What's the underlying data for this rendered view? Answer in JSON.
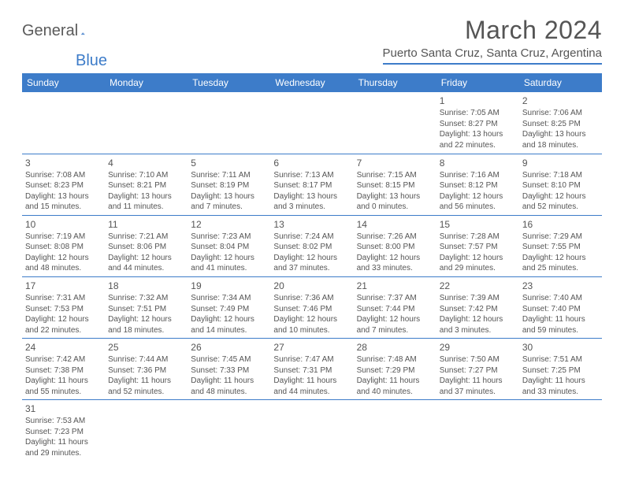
{
  "logo": {
    "text1": "General",
    "text2": "Blue"
  },
  "title": "March 2024",
  "location": "Puerto Santa Cruz, Santa Cruz, Argentina",
  "colors": {
    "accent": "#3d7cc9",
    "text": "#555555",
    "bg": "#ffffff"
  },
  "weekdays": [
    "Sunday",
    "Monday",
    "Tuesday",
    "Wednesday",
    "Thursday",
    "Friday",
    "Saturday"
  ],
  "weeks": [
    [
      null,
      null,
      null,
      null,
      null,
      {
        "n": "1",
        "sunrise": "Sunrise: 7:05 AM",
        "sunset": "Sunset: 8:27 PM",
        "daylight": "Daylight: 13 hours and 22 minutes."
      },
      {
        "n": "2",
        "sunrise": "Sunrise: 7:06 AM",
        "sunset": "Sunset: 8:25 PM",
        "daylight": "Daylight: 13 hours and 18 minutes."
      }
    ],
    [
      {
        "n": "3",
        "sunrise": "Sunrise: 7:08 AM",
        "sunset": "Sunset: 8:23 PM",
        "daylight": "Daylight: 13 hours and 15 minutes."
      },
      {
        "n": "4",
        "sunrise": "Sunrise: 7:10 AM",
        "sunset": "Sunset: 8:21 PM",
        "daylight": "Daylight: 13 hours and 11 minutes."
      },
      {
        "n": "5",
        "sunrise": "Sunrise: 7:11 AM",
        "sunset": "Sunset: 8:19 PM",
        "daylight": "Daylight: 13 hours and 7 minutes."
      },
      {
        "n": "6",
        "sunrise": "Sunrise: 7:13 AM",
        "sunset": "Sunset: 8:17 PM",
        "daylight": "Daylight: 13 hours and 3 minutes."
      },
      {
        "n": "7",
        "sunrise": "Sunrise: 7:15 AM",
        "sunset": "Sunset: 8:15 PM",
        "daylight": "Daylight: 13 hours and 0 minutes."
      },
      {
        "n": "8",
        "sunrise": "Sunrise: 7:16 AM",
        "sunset": "Sunset: 8:12 PM",
        "daylight": "Daylight: 12 hours and 56 minutes."
      },
      {
        "n": "9",
        "sunrise": "Sunrise: 7:18 AM",
        "sunset": "Sunset: 8:10 PM",
        "daylight": "Daylight: 12 hours and 52 minutes."
      }
    ],
    [
      {
        "n": "10",
        "sunrise": "Sunrise: 7:19 AM",
        "sunset": "Sunset: 8:08 PM",
        "daylight": "Daylight: 12 hours and 48 minutes."
      },
      {
        "n": "11",
        "sunrise": "Sunrise: 7:21 AM",
        "sunset": "Sunset: 8:06 PM",
        "daylight": "Daylight: 12 hours and 44 minutes."
      },
      {
        "n": "12",
        "sunrise": "Sunrise: 7:23 AM",
        "sunset": "Sunset: 8:04 PM",
        "daylight": "Daylight: 12 hours and 41 minutes."
      },
      {
        "n": "13",
        "sunrise": "Sunrise: 7:24 AM",
        "sunset": "Sunset: 8:02 PM",
        "daylight": "Daylight: 12 hours and 37 minutes."
      },
      {
        "n": "14",
        "sunrise": "Sunrise: 7:26 AM",
        "sunset": "Sunset: 8:00 PM",
        "daylight": "Daylight: 12 hours and 33 minutes."
      },
      {
        "n": "15",
        "sunrise": "Sunrise: 7:28 AM",
        "sunset": "Sunset: 7:57 PM",
        "daylight": "Daylight: 12 hours and 29 minutes."
      },
      {
        "n": "16",
        "sunrise": "Sunrise: 7:29 AM",
        "sunset": "Sunset: 7:55 PM",
        "daylight": "Daylight: 12 hours and 25 minutes."
      }
    ],
    [
      {
        "n": "17",
        "sunrise": "Sunrise: 7:31 AM",
        "sunset": "Sunset: 7:53 PM",
        "daylight": "Daylight: 12 hours and 22 minutes."
      },
      {
        "n": "18",
        "sunrise": "Sunrise: 7:32 AM",
        "sunset": "Sunset: 7:51 PM",
        "daylight": "Daylight: 12 hours and 18 minutes."
      },
      {
        "n": "19",
        "sunrise": "Sunrise: 7:34 AM",
        "sunset": "Sunset: 7:49 PM",
        "daylight": "Daylight: 12 hours and 14 minutes."
      },
      {
        "n": "20",
        "sunrise": "Sunrise: 7:36 AM",
        "sunset": "Sunset: 7:46 PM",
        "daylight": "Daylight: 12 hours and 10 minutes."
      },
      {
        "n": "21",
        "sunrise": "Sunrise: 7:37 AM",
        "sunset": "Sunset: 7:44 PM",
        "daylight": "Daylight: 12 hours and 7 minutes."
      },
      {
        "n": "22",
        "sunrise": "Sunrise: 7:39 AM",
        "sunset": "Sunset: 7:42 PM",
        "daylight": "Daylight: 12 hours and 3 minutes."
      },
      {
        "n": "23",
        "sunrise": "Sunrise: 7:40 AM",
        "sunset": "Sunset: 7:40 PM",
        "daylight": "Daylight: 11 hours and 59 minutes."
      }
    ],
    [
      {
        "n": "24",
        "sunrise": "Sunrise: 7:42 AM",
        "sunset": "Sunset: 7:38 PM",
        "daylight": "Daylight: 11 hours and 55 minutes."
      },
      {
        "n": "25",
        "sunrise": "Sunrise: 7:44 AM",
        "sunset": "Sunset: 7:36 PM",
        "daylight": "Daylight: 11 hours and 52 minutes."
      },
      {
        "n": "26",
        "sunrise": "Sunrise: 7:45 AM",
        "sunset": "Sunset: 7:33 PM",
        "daylight": "Daylight: 11 hours and 48 minutes."
      },
      {
        "n": "27",
        "sunrise": "Sunrise: 7:47 AM",
        "sunset": "Sunset: 7:31 PM",
        "daylight": "Daylight: 11 hours and 44 minutes."
      },
      {
        "n": "28",
        "sunrise": "Sunrise: 7:48 AM",
        "sunset": "Sunset: 7:29 PM",
        "daylight": "Daylight: 11 hours and 40 minutes."
      },
      {
        "n": "29",
        "sunrise": "Sunrise: 7:50 AM",
        "sunset": "Sunset: 7:27 PM",
        "daylight": "Daylight: 11 hours and 37 minutes."
      },
      {
        "n": "30",
        "sunrise": "Sunrise: 7:51 AM",
        "sunset": "Sunset: 7:25 PM",
        "daylight": "Daylight: 11 hours and 33 minutes."
      }
    ],
    [
      {
        "n": "31",
        "sunrise": "Sunrise: 7:53 AM",
        "sunset": "Sunset: 7:23 PM",
        "daylight": "Daylight: 11 hours and 29 minutes."
      },
      null,
      null,
      null,
      null,
      null,
      null
    ]
  ]
}
